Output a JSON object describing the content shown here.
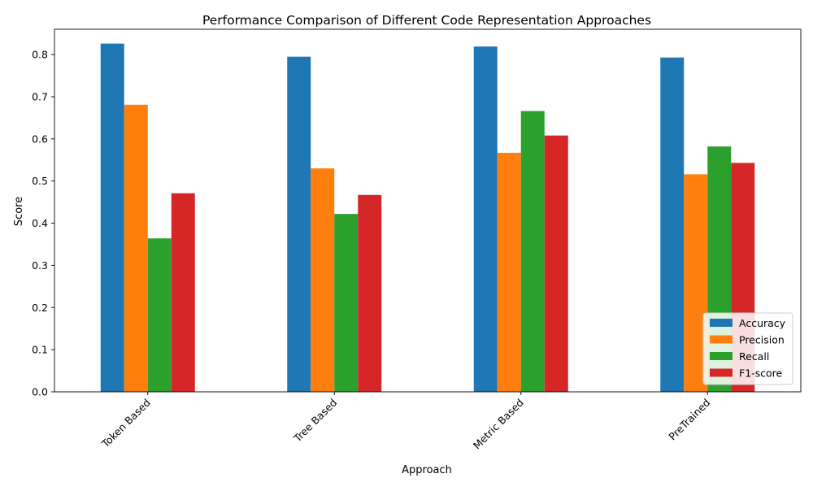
{
  "chart_data": {
    "type": "bar",
    "title": "Performance Comparison of Different Code Representation Approaches",
    "xlabel": "Approach",
    "ylabel": "Score",
    "categories": [
      "Token Based",
      "Tree Based",
      "Metric Based",
      "PreTrained"
    ],
    "series": [
      {
        "name": "Accuracy",
        "color": "#1f77b4",
        "values": [
          0.826,
          0.795,
          0.819,
          0.793
        ]
      },
      {
        "name": "Precision",
        "color": "#ff7f0e",
        "values": [
          0.681,
          0.53,
          0.567,
          0.516
        ]
      },
      {
        "name": "Recall",
        "color": "#2ca02c",
        "values": [
          0.364,
          0.422,
          0.666,
          0.582
        ]
      },
      {
        "name": "F1-score",
        "color": "#d62728",
        "values": [
          0.471,
          0.467,
          0.608,
          0.543
        ]
      }
    ],
    "ylim": [
      0,
      0.86
    ],
    "yticks": [
      "0.0",
      "0.1",
      "0.2",
      "0.3",
      "0.4",
      "0.5",
      "0.6",
      "0.7",
      "0.8"
    ],
    "grid": false,
    "legend_position": "bottom-right"
  }
}
